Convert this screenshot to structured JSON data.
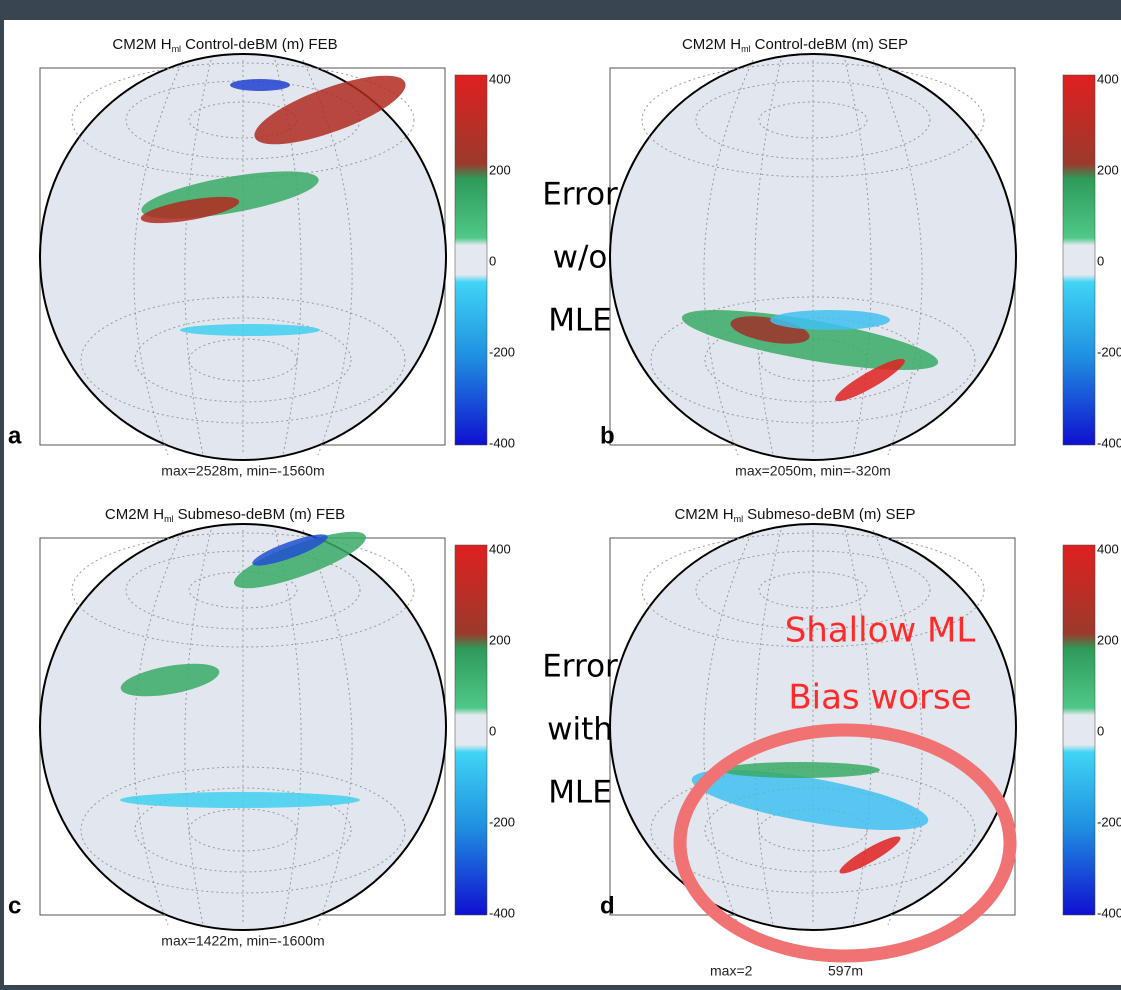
{
  "colorbar": {
    "ticks": [
      "400",
      "200",
      "0",
      "-200",
      "-400"
    ]
  },
  "panels": [
    {
      "letter": "a",
      "title": {
        "prefix": "CM2M H",
        "subscript": "ml",
        "suffix": "Control-deBM (m) FEB"
      },
      "stats": [
        "max=2528m, min=-1560m"
      ]
    },
    {
      "letter": "b",
      "title": {
        "prefix": "CM2M H",
        "subscript": "ml",
        "suffix": "Control-deBM (m) SEP"
      },
      "stats": [
        "max=2050m, min=-320m"
      ]
    },
    {
      "letter": "c",
      "title": {
        "prefix": "CM2M H",
        "subscript": "ml",
        "suffix": "Submeso-deBM (m) FEB"
      },
      "stats": [
        "max=1422m, min=-1600m"
      ]
    },
    {
      "letter": "d",
      "title": {
        "prefix": "CM2M H",
        "subscript": "ml",
        "suffix": "Submeso-deBM (m) SEP"
      },
      "stats": [
        "max=2",
        "597m"
      ]
    }
  ],
  "annotations": {
    "top": [
      "Error",
      "w/o",
      "MLE"
    ],
    "bottom": [
      "Error",
      "with",
      "MLE"
    ],
    "highlight": [
      "Shallow ML",
      "Bias worse"
    ]
  }
}
